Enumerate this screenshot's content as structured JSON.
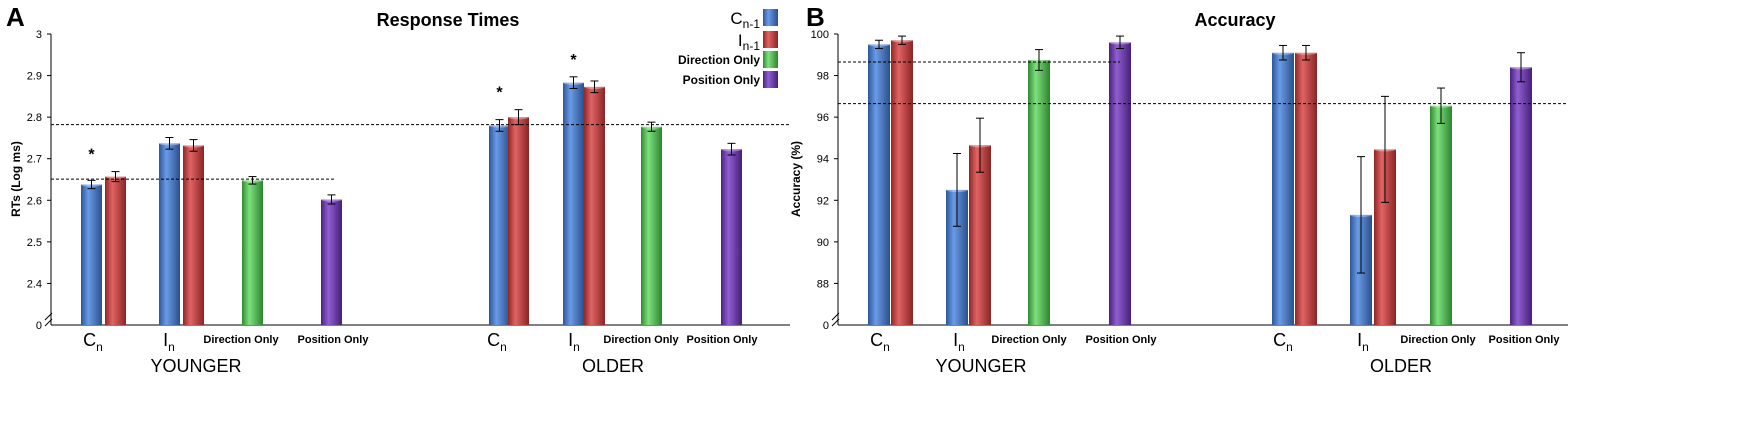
{
  "figure": {
    "panel_a_letter": "A",
    "panel_b_letter": "B"
  },
  "legend": {
    "items": [
      {
        "key": "cn1",
        "label_main": "C",
        "label_sub": "n-1",
        "color": "#3f74c8"
      },
      {
        "key": "in1",
        "label_main": "I",
        "label_sub": "n-1",
        "color": "#c43b3b"
      },
      {
        "key": "dir",
        "label": "Direction Only",
        "color": "#45b045"
      },
      {
        "key": "pos",
        "label": "Position Only",
        "color": "#6a35a8"
      }
    ]
  },
  "chart_data": [
    {
      "type": "bar",
      "title": "Response Times",
      "ylabel": "RTs (Log ms)",
      "ylim": [
        2.3,
        3.0
      ],
      "axis_break": true,
      "yticks": [
        "2.4",
        "2.5",
        "2.6",
        "2.7",
        "2.8",
        "2.9",
        "3"
      ],
      "ybase_label": "0",
      "groups": [
        "YOUNGER",
        "OLDER"
      ],
      "category_labels": [
        {
          "main": "C",
          "sub": "n"
        },
        {
          "main": "I",
          "sub": "n"
        },
        {
          "main": "Direction Only"
        },
        {
          "main": "Position Only"
        }
      ],
      "bars": [
        {
          "group": "YOUNGER",
          "category": "Cn",
          "series": "Cn-1",
          "value": 2.638,
          "error": 0.01
        },
        {
          "group": "YOUNGER",
          "category": "Cn",
          "series": "In-1",
          "value": 2.657,
          "error": 0.012
        },
        {
          "group": "YOUNGER",
          "category": "In",
          "series": "Cn-1",
          "value": 2.737,
          "error": 0.014
        },
        {
          "group": "YOUNGER",
          "category": "In",
          "series": "In-1",
          "value": 2.732,
          "error": 0.014
        },
        {
          "group": "YOUNGER",
          "category": "Direction Only",
          "series": "Direction Only",
          "value": 2.648,
          "error": 0.009
        },
        {
          "group": "YOUNGER",
          "category": "Position Only",
          "series": "Position Only",
          "value": 2.602,
          "error": 0.011
        },
        {
          "group": "OLDER",
          "category": "Cn",
          "series": "Cn-1",
          "value": 2.78,
          "error": 0.014
        },
        {
          "group": "OLDER",
          "category": "Cn",
          "series": "In-1",
          "value": 2.8,
          "error": 0.018
        },
        {
          "group": "OLDER",
          "category": "In",
          "series": "Cn-1",
          "value": 2.883,
          "error": 0.014
        },
        {
          "group": "OLDER",
          "category": "In",
          "series": "In-1",
          "value": 2.873,
          "error": 0.014
        },
        {
          "group": "OLDER",
          "category": "Direction Only",
          "series": "Direction Only",
          "value": 2.777,
          "error": 0.011
        },
        {
          "group": "OLDER",
          "category": "Position Only",
          "series": "Position Only",
          "value": 2.723,
          "error": 0.014
        }
      ],
      "reference_lines": [
        {
          "group": "YOUNGER",
          "value": 2.651
        },
        {
          "group": "BOTH",
          "value": 2.782
        }
      ],
      "significance_markers": [
        {
          "group": "YOUNGER",
          "category": "Cn",
          "label": "*"
        },
        {
          "group": "OLDER",
          "category": "Cn",
          "label": "*"
        },
        {
          "group": "OLDER",
          "category": "In",
          "label": "*"
        }
      ]
    },
    {
      "type": "bar",
      "title": "Accuracy",
      "ylabel": "Accuracy (%)",
      "ylim": [
        86,
        100
      ],
      "axis_break": true,
      "yticks": [
        "88",
        "90",
        "92",
        "94",
        "96",
        "98",
        "100"
      ],
      "ybase_label": "0",
      "groups": [
        "YOUNGER",
        "OLDER"
      ],
      "category_labels": [
        {
          "main": "C",
          "sub": "n"
        },
        {
          "main": "I",
          "sub": "n"
        },
        {
          "main": "Direction Only"
        },
        {
          "main": "Position Only"
        }
      ],
      "bars": [
        {
          "group": "YOUNGER",
          "category": "Cn",
          "series": "Cn-1",
          "value": 99.5,
          "error": 0.2
        },
        {
          "group": "YOUNGER",
          "category": "Cn",
          "series": "In-1",
          "value": 99.7,
          "error": 0.2
        },
        {
          "group": "YOUNGER",
          "category": "In",
          "series": "Cn-1",
          "value": 92.5,
          "error": 1.75
        },
        {
          "group": "YOUNGER",
          "category": "In",
          "series": "In-1",
          "value": 94.65,
          "error": 1.3
        },
        {
          "group": "YOUNGER",
          "category": "Direction Only",
          "series": "Direction Only",
          "value": 98.75,
          "error": 0.5
        },
        {
          "group": "YOUNGER",
          "category": "Position Only",
          "series": "Position Only",
          "value": 99.6,
          "error": 0.3
        },
        {
          "group": "OLDER",
          "category": "Cn",
          "series": "Cn-1",
          "value": 99.1,
          "error": 0.35
        },
        {
          "group": "OLDER",
          "category": "Cn",
          "series": "In-1",
          "value": 99.1,
          "error": 0.35
        },
        {
          "group": "OLDER",
          "category": "In",
          "series": "Cn-1",
          "value": 91.3,
          "error": 2.8
        },
        {
          "group": "OLDER",
          "category": "In",
          "series": "In-1",
          "value": 94.45,
          "error": 2.55
        },
        {
          "group": "OLDER",
          "category": "Direction Only",
          "series": "Direction Only",
          "value": 96.55,
          "error": 0.85
        },
        {
          "group": "OLDER",
          "category": "Position Only",
          "series": "Position Only",
          "value": 98.4,
          "error": 0.7
        }
      ],
      "reference_lines": [
        {
          "group": "YOUNGER",
          "value": 98.65
        },
        {
          "group": "BOTH",
          "value": 96.65
        }
      ],
      "significance_markers": []
    }
  ]
}
